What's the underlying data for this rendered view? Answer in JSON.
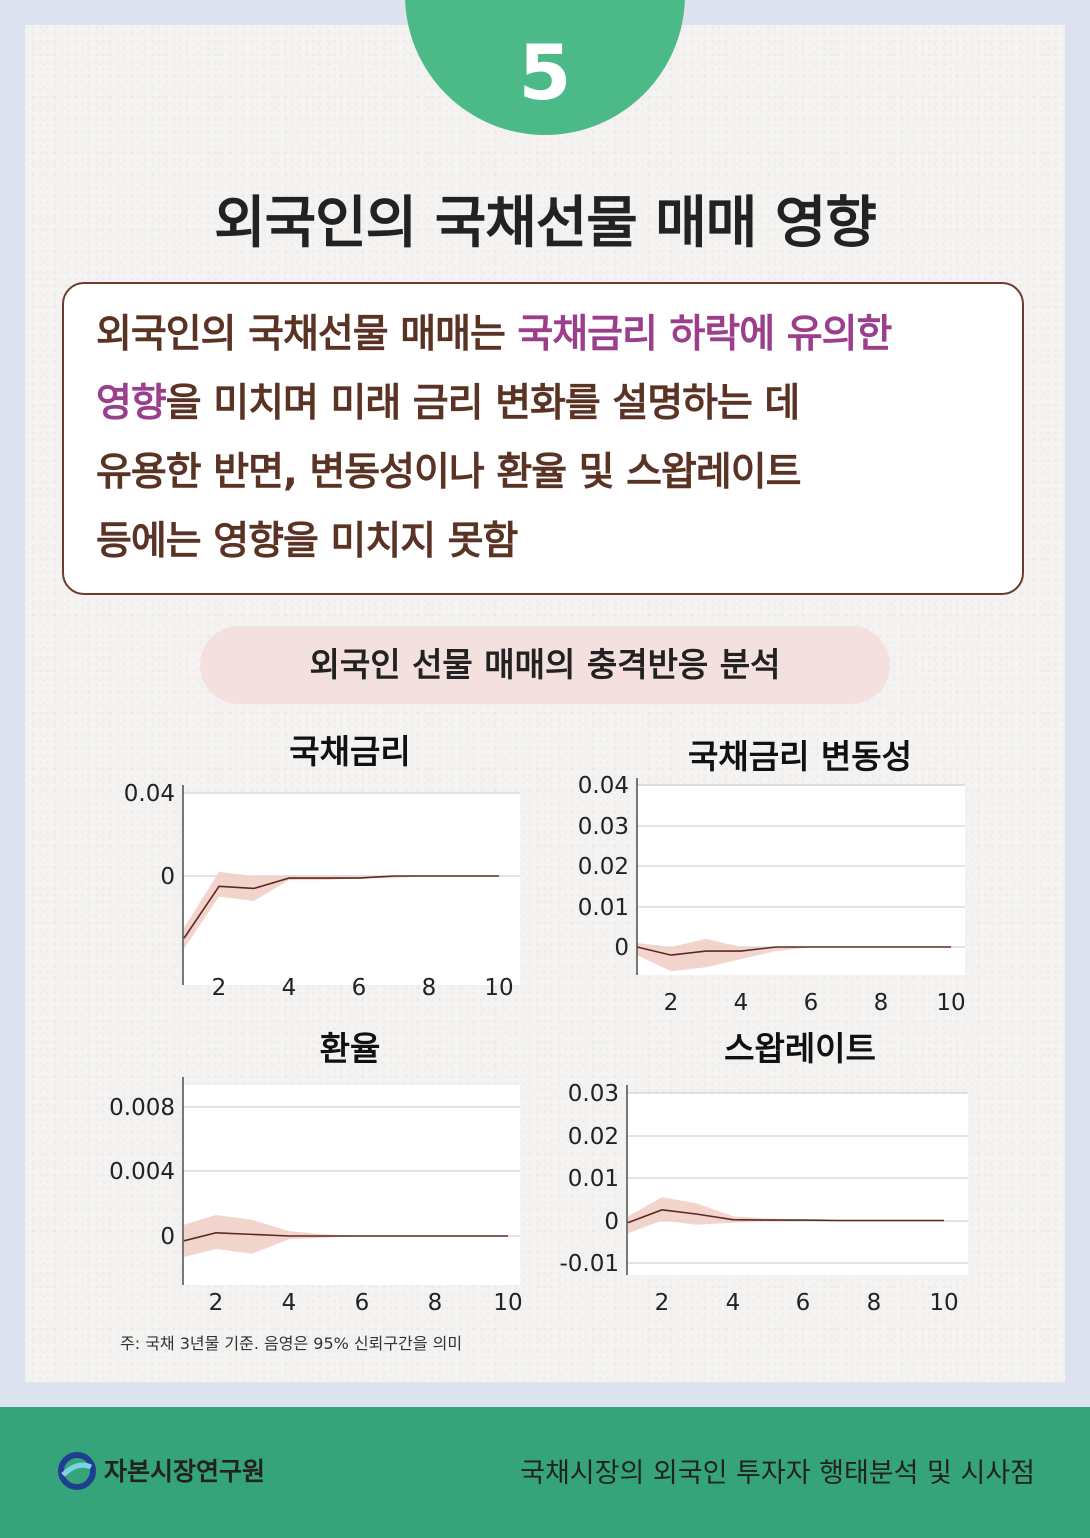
{
  "badge_number": "5",
  "main_title": "외국인의 국채선물 매매 영향",
  "summary": {
    "part1": "외국인의 국채선물 매매는 ",
    "highlight1": "국채금리 하락에 유의한",
    "highlight2": "영향",
    "part2": "을 미치며 미래 금리 변화를 설명하는 데",
    "line3": "유용한 반면, 변동성이나 환율 및 스왑레이트",
    "line4": "등에는 영향을 미치지 못함",
    "highlight_color": "#9b3e8c"
  },
  "section_title": "외국인 선물 매매의 충격반응 분석",
  "chart_data": [
    {
      "type": "line",
      "title": "국채금리",
      "x": [
        1,
        2,
        3,
        4,
        5,
        6,
        7,
        8,
        9,
        10
      ],
      "series": [
        {
          "values": [
            -0.03,
            -0.005,
            -0.006,
            -0.001,
            -0.001,
            -0.001,
            0.0,
            0.0,
            0.0,
            0.0
          ]
        }
      ],
      "band_upper": [
        -0.025,
        0.002,
        0.0,
        0.0,
        0.0,
        0.0,
        0.0,
        0.0,
        0.0,
        0.0
      ],
      "band_lower": [
        -0.035,
        -0.01,
        -0.012,
        -0.002,
        -0.002,
        -0.001,
        -0.001,
        0.0,
        0.0,
        0.0
      ],
      "xticks": [
        "2",
        "4",
        "6",
        "8",
        "10"
      ],
      "yticks": [
        "0.04",
        "0"
      ],
      "ylim": [
        -0.05,
        0.04
      ]
    },
    {
      "type": "line",
      "title": "국채금리 변동성",
      "x": [
        1,
        2,
        3,
        4,
        5,
        6,
        7,
        8,
        9,
        10
      ],
      "series": [
        {
          "values": [
            0.0,
            -0.002,
            -0.001,
            -0.001,
            0.0,
            0.0,
            0.0,
            0.0,
            0.0,
            0.0
          ]
        }
      ],
      "band_upper": [
        0.001,
        0.0,
        0.002,
        0.0,
        0.0,
        0.0,
        0.0,
        0.0,
        0.0,
        0.0
      ],
      "band_lower": [
        -0.002,
        -0.006,
        -0.005,
        -0.003,
        -0.001,
        0.0,
        0.0,
        0.0,
        0.0,
        0.0
      ],
      "xticks": [
        "2",
        "4",
        "6",
        "8",
        "10"
      ],
      "yticks": [
        "0.04",
        "0.03",
        "0.02",
        "0.01",
        "0"
      ],
      "ylim": [
        -0.007,
        0.04
      ]
    },
    {
      "type": "line",
      "title": "환율",
      "x": [
        1,
        2,
        3,
        4,
        5,
        6,
        7,
        8,
        9,
        10
      ],
      "series": [
        {
          "values": [
            -0.0003,
            0.0002,
            0.0001,
            0.0,
            0.0,
            0.0,
            0.0,
            0.0,
            0.0,
            0.0
          ]
        }
      ],
      "band_upper": [
        0.0007,
        0.0013,
        0.001,
        0.0003,
        0.0001,
        0.0,
        0.0,
        0.0,
        0.0,
        0.0
      ],
      "band_lower": [
        -0.0013,
        -0.0008,
        -0.0011,
        -0.0002,
        -0.0001,
        0.0,
        0.0,
        0.0,
        0.0,
        0.0
      ],
      "xticks": [
        "2",
        "4",
        "6",
        "8",
        "10"
      ],
      "yticks": [
        "0.008",
        "0.004",
        "0"
      ],
      "ylim": [
        -0.003,
        0.008
      ]
    },
    {
      "type": "line",
      "title": "스왑레이트",
      "x": [
        1,
        2,
        3,
        4,
        5,
        6,
        7,
        8,
        9,
        10
      ],
      "series": [
        {
          "values": [
            -0.0005,
            0.0025,
            0.0015,
            0.0002,
            0.0001,
            0.0001,
            0.0,
            0.0,
            0.0,
            0.0
          ]
        }
      ],
      "band_upper": [
        0.001,
        0.0055,
        0.004,
        0.001,
        0.0005,
        0.0002,
        0.0001,
        0.0,
        0.0,
        0.0
      ],
      "band_lower": [
        -0.003,
        0.0,
        -0.001,
        -0.0005,
        -0.0002,
        0.0,
        0.0,
        0.0,
        0.0,
        0.0
      ],
      "xticks": [
        "2",
        "4",
        "6",
        "8",
        "10"
      ],
      "yticks": [
        "0.03",
        "0.02",
        "0.01",
        "0",
        "-0.01"
      ],
      "ylim": [
        -0.01,
        0.03
      ]
    }
  ],
  "colors": {
    "line": "#5a2a20",
    "band": "#f1cfc8"
  },
  "note": "주: 국채 3년물 기준. 음영은 95% 신뢰구간을 의미",
  "footer": {
    "logo_text": "자본시장연구원",
    "report_title": "국채시장의 외국인 투자자 행태분석 및 시사점",
    "logo_icon": "kcmi-logo-icon"
  }
}
